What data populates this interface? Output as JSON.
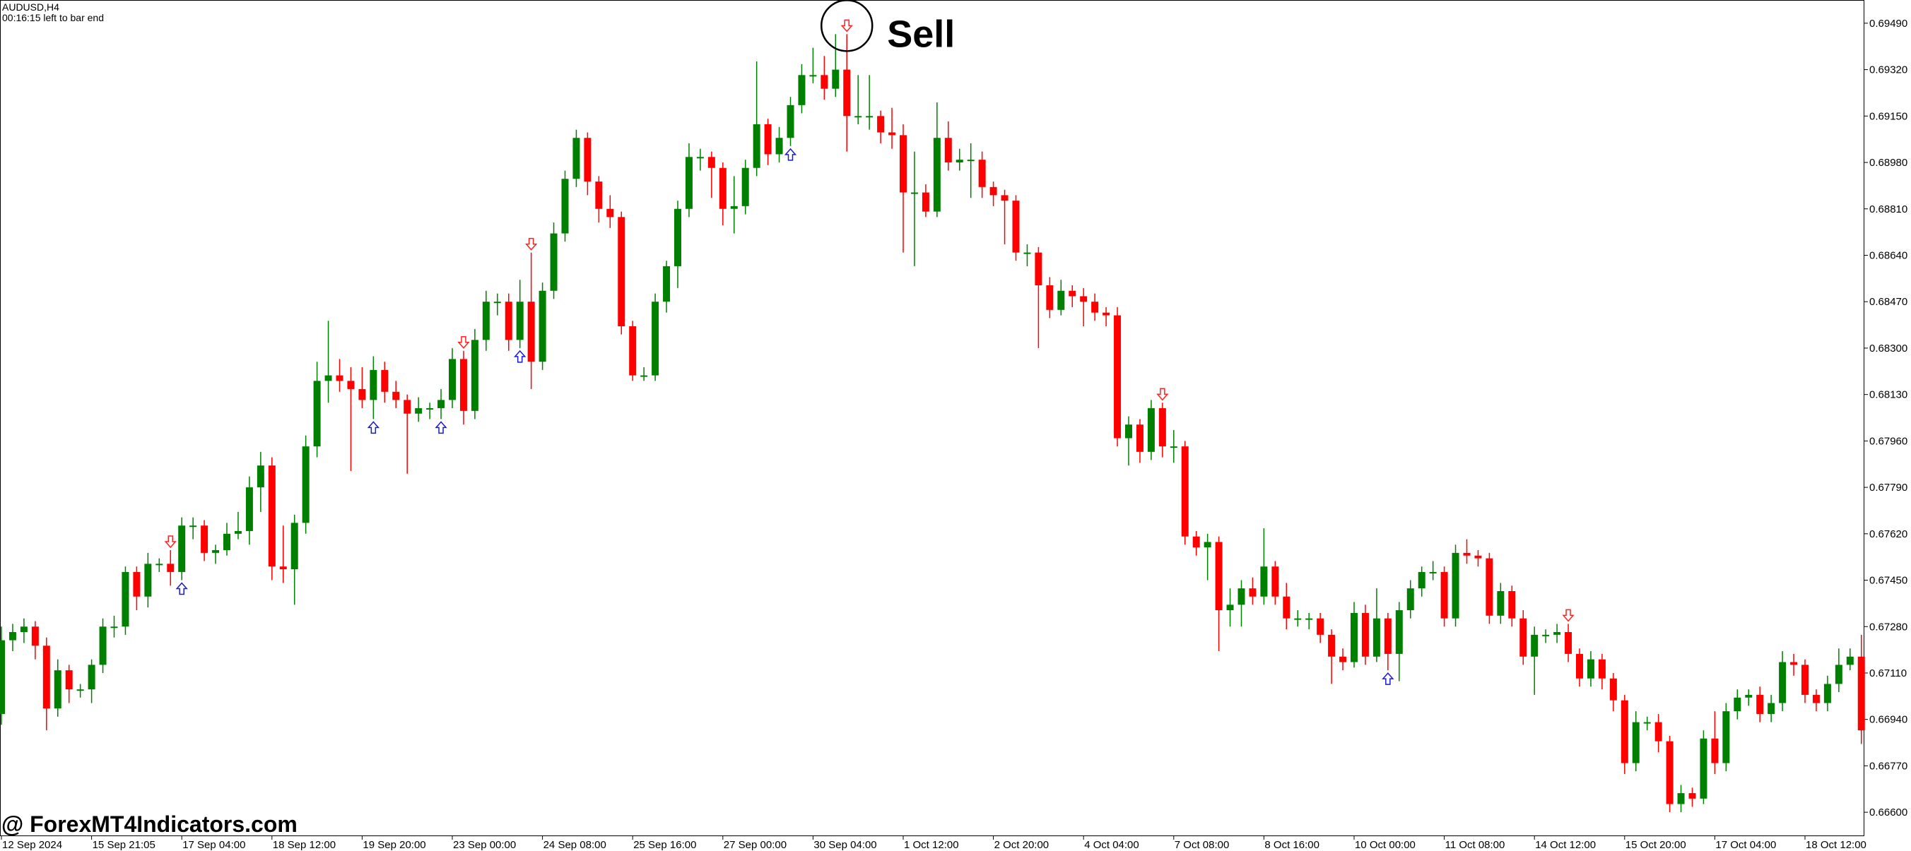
{
  "chart_data": {
    "type": "candlestick",
    "title": "AUDUSD,H4",
    "subtitle": "00:16:15 left to bar end",
    "up_color": "#008000",
    "down_color": "#ff0000",
    "buy_color": "#1a1acc",
    "sell_color": "#ff2020",
    "open": [
      0.6696,
      0.6723,
      0.6726,
      0.6728,
      0.6721,
      0.6698,
      0.6712,
      0.6705,
      0.6705,
      0.6714,
      0.6728,
      0.6728,
      0.6748,
      0.6739,
      0.6751,
      0.6751,
      0.6748,
      0.6765,
      0.6765,
      0.6755,
      0.6756,
      0.6762,
      0.6763,
      0.6779,
      0.6787,
      0.675,
      0.6749,
      0.6766,
      0.6794,
      0.6818,
      0.682,
      0.6818,
      0.6815,
      0.6811,
      0.6822,
      0.6814,
      0.6811,
      0.6806,
      0.6808,
      0.6808,
      0.6811,
      0.6826,
      0.6807,
      0.6833,
      0.6847,
      0.6847,
      0.6833,
      0.6847,
      0.6825,
      0.6851,
      0.6872,
      0.6892,
      0.6907,
      0.6891,
      0.6881,
      0.6878,
      0.6838,
      0.682,
      0.682,
      0.6847,
      0.686,
      0.6881,
      0.69,
      0.69,
      0.6896,
      0.6881,
      0.6882,
      0.6896,
      0.6912,
      0.6901,
      0.6907,
      0.6919,
      0.693,
      0.693,
      0.6925,
      0.6932,
      0.6915,
      0.6915,
      0.6915,
      0.6909,
      0.6908,
      0.6887,
      0.6887,
      0.688,
      0.6907,
      0.6898,
      0.6899,
      0.6899,
      0.6889,
      0.6886,
      0.6884,
      0.6865,
      0.6865,
      0.6853,
      0.6844,
      0.6851,
      0.6849,
      0.6847,
      0.6843,
      0.6842,
      0.6797,
      0.6802,
      0.6792,
      0.6808,
      0.6794,
      0.6794,
      0.6761,
      0.6757,
      0.6759,
      0.6734,
      0.6736,
      0.6742,
      0.6739,
      0.675,
      0.6739,
      0.6731,
      0.6731,
      0.6731,
      0.6725,
      0.6717,
      0.6715,
      0.6733,
      0.6717,
      0.6731,
      0.6718,
      0.6734,
      0.6742,
      0.6748,
      0.6748,
      0.6731,
      0.6755,
      0.6754,
      0.6753,
      0.6732,
      0.6741,
      0.6731,
      0.6717,
      0.6725,
      0.6725,
      0.6726,
      0.6718,
      0.6709,
      0.6716,
      0.6709,
      0.6701,
      0.6678,
      0.6693,
      0.6693,
      0.6686,
      0.6663,
      0.6667,
      0.6665,
      0.6687,
      0.6678,
      0.6697,
      0.6702,
      0.6703,
      0.6696,
      0.67,
      0.6715,
      0.6714,
      0.6703,
      0.67,
      0.6707,
      0.6714,
      0.6717
    ],
    "high": [
      0.6728,
      0.6729,
      0.6731,
      0.673,
      0.6724,
      0.6716,
      0.6714,
      0.6707,
      0.6716,
      0.6731,
      0.6732,
      0.675,
      0.675,
      0.6755,
      0.6753,
      0.6756,
      0.6768,
      0.6768,
      0.6767,
      0.6758,
      0.6766,
      0.677,
      0.6783,
      0.6792,
      0.679,
      0.6765,
      0.6769,
      0.6798,
      0.6825,
      0.684,
      0.6826,
      0.6823,
      0.6823,
      0.6827,
      0.6825,
      0.6818,
      0.6813,
      0.6812,
      0.681,
      0.6815,
      0.683,
      0.6829,
      0.6837,
      0.6851,
      0.685,
      0.685,
      0.6855,
      0.6865,
      0.6854,
      0.6876,
      0.6895,
      0.691,
      0.6909,
      0.6893,
      0.6886,
      0.688,
      0.684,
      0.6823,
      0.685,
      0.6862,
      0.6884,
      0.6905,
      0.6903,
      0.6902,
      0.6898,
      0.6893,
      0.6899,
      0.6935,
      0.6914,
      0.6911,
      0.6922,
      0.6934,
      0.694,
      0.6937,
      0.6945,
      0.6945,
      0.693,
      0.693,
      0.6917,
      0.6918,
      0.6912,
      0.6902,
      0.689,
      0.692,
      0.6913,
      0.6903,
      0.6905,
      0.6902,
      0.6891,
      0.6888,
      0.6886,
      0.6868,
      0.6867,
      0.6856,
      0.6855,
      0.6853,
      0.6852,
      0.685,
      0.6845,
      0.6845,
      0.6805,
      0.6804,
      0.6811,
      0.681,
      0.68,
      0.6796,
      0.6763,
      0.6762,
      0.6761,
      0.6742,
      0.6745,
      0.6746,
      0.6764,
      0.6752,
      0.6744,
      0.6734,
      0.6733,
      0.6733,
      0.6727,
      0.672,
      0.6737,
      0.6736,
      0.6742,
      0.6733,
      0.6737,
      0.6745,
      0.675,
      0.6752,
      0.675,
      0.6758,
      0.676,
      0.6756,
      0.6755,
      0.6744,
      0.6743,
      0.6734,
      0.6728,
      0.6727,
      0.6729,
      0.6729,
      0.672,
      0.6719,
      0.6718,
      0.6711,
      0.6703,
      0.6697,
      0.6695,
      0.6696,
      0.6688,
      0.667,
      0.6669,
      0.669,
      0.6697,
      0.67,
      0.6705,
      0.6705,
      0.6706,
      0.6703,
      0.6719,
      0.6718,
      0.6716,
      0.6705,
      0.671,
      0.672,
      0.672,
      0.6725
    ],
    "low": [
      0.6692,
      0.6719,
      0.6722,
      0.6716,
      0.669,
      0.6695,
      0.67,
      0.6702,
      0.67,
      0.6711,
      0.6724,
      0.6725,
      0.6734,
      0.6735,
      0.6748,
      0.6743,
      0.6745,
      0.676,
      0.6752,
      0.6751,
      0.6754,
      0.676,
      0.6758,
      0.677,
      0.6745,
      0.6744,
      0.6736,
      0.6762,
      0.679,
      0.681,
      0.6814,
      0.6785,
      0.6808,
      0.6804,
      0.681,
      0.6808,
      0.6784,
      0.6803,
      0.6804,
      0.6804,
      0.6808,
      0.6802,
      0.6804,
      0.6829,
      0.6842,
      0.6829,
      0.683,
      0.6815,
      0.6822,
      0.6848,
      0.6869,
      0.6889,
      0.6886,
      0.6876,
      0.6874,
      0.6835,
      0.6818,
      0.6818,
      0.6818,
      0.6843,
      0.6852,
      0.6878,
      0.6895,
      0.6885,
      0.6875,
      0.6872,
      0.6879,
      0.6893,
      0.6897,
      0.6898,
      0.6904,
      0.6916,
      0.6927,
      0.6921,
      0.6922,
      0.6902,
      0.6912,
      0.691,
      0.6905,
      0.6903,
      0.6865,
      0.686,
      0.6878,
      0.6878,
      0.6895,
      0.6895,
      0.6885,
      0.6885,
      0.6882,
      0.6868,
      0.6862,
      0.686,
      0.683,
      0.6841,
      0.6842,
      0.6845,
      0.6838,
      0.684,
      0.6838,
      0.6794,
      0.6787,
      0.6788,
      0.6789,
      0.679,
      0.6788,
      0.6758,
      0.6754,
      0.6745,
      0.6719,
      0.6728,
      0.6728,
      0.6736,
      0.6736,
      0.6736,
      0.6727,
      0.6728,
      0.6727,
      0.6722,
      0.6707,
      0.6712,
      0.6713,
      0.6714,
      0.6715,
      0.6712,
      0.6708,
      0.6731,
      0.6739,
      0.6745,
      0.6728,
      0.6728,
      0.6751,
      0.675,
      0.6729,
      0.6729,
      0.6728,
      0.6714,
      0.6703,
      0.6722,
      0.6722,
      0.6715,
      0.6706,
      0.6706,
      0.6705,
      0.6697,
      0.6674,
      0.6675,
      0.669,
      0.6682,
      0.666,
      0.666,
      0.6662,
      0.6663,
      0.6674,
      0.6675,
      0.6694,
      0.6699,
      0.6693,
      0.6693,
      0.6697,
      0.671,
      0.67,
      0.6697,
      0.6697,
      0.6704,
      0.6712,
      0.6685
    ],
    "close": [
      0.6723,
      0.6726,
      0.6728,
      0.6721,
      0.6698,
      0.6712,
      0.6705,
      0.6705,
      0.6714,
      0.6728,
      0.6728,
      0.6748,
      0.6739,
      0.6751,
      0.6751,
      0.6748,
      0.6765,
      0.6765,
      0.6755,
      0.6756,
      0.6762,
      0.6763,
      0.6779,
      0.6787,
      0.675,
      0.6749,
      0.6766,
      0.6794,
      0.6818,
      0.682,
      0.6818,
      0.6815,
      0.6811,
      0.6822,
      0.6814,
      0.6811,
      0.6806,
      0.6808,
      0.6808,
      0.6811,
      0.6826,
      0.6807,
      0.6833,
      0.6847,
      0.6847,
      0.6833,
      0.6847,
      0.6825,
      0.6851,
      0.6872,
      0.6892,
      0.6907,
      0.6891,
      0.6881,
      0.6878,
      0.6838,
      0.682,
      0.682,
      0.6847,
      0.686,
      0.6881,
      0.69,
      0.69,
      0.6896,
      0.6881,
      0.6882,
      0.6896,
      0.6912,
      0.6901,
      0.6907,
      0.6919,
      0.693,
      0.693,
      0.6925,
      0.6932,
      0.6915,
      0.6915,
      0.6915,
      0.6909,
      0.6908,
      0.6887,
      0.6887,
      0.688,
      0.6907,
      0.6898,
      0.6899,
      0.6899,
      0.6889,
      0.6886,
      0.6884,
      0.6865,
      0.6865,
      0.6853,
      0.6844,
      0.6851,
      0.6849,
      0.6847,
      0.6843,
      0.6842,
      0.6797,
      0.6802,
      0.6792,
      0.6808,
      0.6794,
      0.6794,
      0.6761,
      0.6757,
      0.6759,
      0.6734,
      0.6736,
      0.6742,
      0.6739,
      0.675,
      0.6739,
      0.6731,
      0.6731,
      0.6731,
      0.6725,
      0.6717,
      0.6715,
      0.6733,
      0.6717,
      0.6731,
      0.6718,
      0.6734,
      0.6742,
      0.6748,
      0.6748,
      0.6731,
      0.6755,
      0.6754,
      0.6753,
      0.6732,
      0.6741,
      0.6731,
      0.6717,
      0.6725,
      0.6725,
      0.6726,
      0.6718,
      0.6709,
      0.6716,
      0.6709,
      0.6701,
      0.6678,
      0.6693,
      0.6693,
      0.6686,
      0.6663,
      0.6667,
      0.6665,
      0.6687,
      0.6678,
      0.6697,
      0.6702,
      0.6703,
      0.6696,
      0.67,
      0.6715,
      0.6714,
      0.6703,
      0.67,
      0.6707,
      0.6714,
      0.6717,
      0.669
    ],
    "buy_signals": [
      16,
      33,
      39,
      46,
      70,
      123
    ],
    "sell_signals": [
      15,
      41,
      47,
      75,
      103,
      139
    ],
    "annotation": {
      "text": "Sell",
      "index": 75
    },
    "ylim": [
      0.66515,
      0.69575
    ],
    "yticks": [
      {
        "value": 0.6949,
        "label": "0.69490"
      },
      {
        "value": 0.6932,
        "label": "0.69320"
      },
      {
        "value": 0.6915,
        "label": "0.69150"
      },
      {
        "value": 0.6898,
        "label": "0.68980"
      },
      {
        "value": 0.6881,
        "label": "0.68810"
      },
      {
        "value": 0.6864,
        "label": "0.68640"
      },
      {
        "value": 0.6847,
        "label": "0.68470"
      },
      {
        "value": 0.683,
        "label": "0.68300"
      },
      {
        "value": 0.6813,
        "label": "0.68130"
      },
      {
        "value": 0.6796,
        "label": "0.67960"
      },
      {
        "value": 0.6779,
        "label": "0.67790"
      },
      {
        "value": 0.6762,
        "label": "0.67620"
      },
      {
        "value": 0.6745,
        "label": "0.67450"
      },
      {
        "value": 0.6728,
        "label": "0.67280"
      },
      {
        "value": 0.6711,
        "label": "0.67110"
      },
      {
        "value": 0.6694,
        "label": "0.66940"
      },
      {
        "value": 0.6677,
        "label": "0.66770"
      },
      {
        "value": 0.666,
        "label": "0.66600"
      }
    ],
    "xticks": [
      {
        "value": 0,
        "label": "12 Sep 2024"
      },
      {
        "value": 8,
        "label": "15 Sep 21:05"
      },
      {
        "value": 16,
        "label": "17 Sep 04:00"
      },
      {
        "value": 24,
        "label": "18 Sep 12:00"
      },
      {
        "value": 32,
        "label": "19 Sep 20:00"
      },
      {
        "value": 40,
        "label": "23 Sep 00:00"
      },
      {
        "value": 48,
        "label": "24 Sep 08:00"
      },
      {
        "value": 56,
        "label": "25 Sep 16:00"
      },
      {
        "value": 64,
        "label": "27 Sep 00:00"
      },
      {
        "value": 72,
        "label": "30 Sep 04:00"
      },
      {
        "value": 80,
        "label": "1 Oct 12:00"
      },
      {
        "value": 88,
        "label": "2 Oct 20:00"
      },
      {
        "value": 96,
        "label": "4 Oct 04:00"
      },
      {
        "value": 104,
        "label": "7 Oct 08:00"
      },
      {
        "value": 112,
        "label": "8 Oct 16:00"
      },
      {
        "value": 120,
        "label": "10 Oct 00:00"
      },
      {
        "value": 128,
        "label": "11 Oct 08:00"
      },
      {
        "value": 136,
        "label": "14 Oct 12:00"
      },
      {
        "value": 144,
        "label": "15 Oct 20:00"
      },
      {
        "value": 152,
        "label": "17 Oct 04:00"
      },
      {
        "value": 160,
        "label": "18 Oct 12:00"
      }
    ]
  },
  "watermark": "@ ForexMT4Indicators.com"
}
